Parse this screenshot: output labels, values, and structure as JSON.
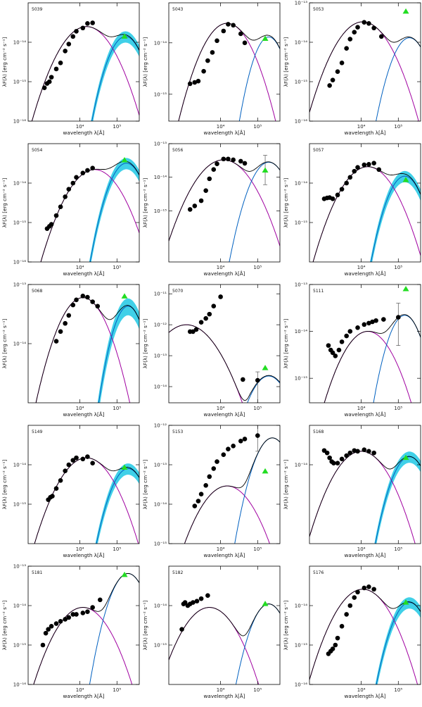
{
  "figure": {
    "x_axis_title": "wavelength λ[Å]",
    "y_axis_title": "λF(λ) [erg cm⁻² s⁻¹]"
  },
  "colors": {
    "observed": "#000000",
    "stellar": "#a000a0",
    "dust": "#0060c0",
    "dust_band": "#00c0e0",
    "total": "#000000",
    "uncertainty": "#a9a9a9",
    "far_ir_point": "#22dd22"
  },
  "chart_data": [
    {
      "id": "5039",
      "type": "line",
      "xscale": "log",
      "yscale": "log",
      "xlim": [
        400,
        400000
      ],
      "ylim": [
        1e-16,
        1e-13
      ],
      "x_ticks": [
        "1000",
        "10⁴",
        "10⁵"
      ],
      "y_ticks": [
        "10⁻¹⁴",
        "10⁻¹⁵",
        "10⁻¹⁶"
      ],
      "photometry": {
        "x": [
          1100,
          1300,
          1500,
          1700,
          2300,
          3000,
          4000,
          5000,
          6500,
          8000,
          12000,
          16000,
          22000
        ],
        "y": [
          7e-16,
          9e-16,
          1e-15,
          1.3e-15,
          2.1e-15,
          3e-15,
          6e-15,
          9e-15,
          1.4e-14,
          1.9e-14,
          2.3e-14,
          3e-14,
          3.1e-14
        ]
      },
      "far_ir_point": {
        "x": 160000,
        "y": 1.4e-14
      },
      "stellar_peak": {
        "x": 15000,
        "y": 2.5e-14
      },
      "dust_peak": {
        "x": 170000,
        "y": 1.4e-14
      },
      "dust_band": true
    },
    {
      "id": "5043",
      "type": "line",
      "xscale": "log",
      "yscale": "log",
      "xlim": [
        400,
        400000
      ],
      "ylim": [
        3e-16,
        6e-14
      ],
      "x_ticks": [
        "1000",
        "10⁴",
        "10⁵"
      ],
      "y_ticks": [
        "10⁻¹⁴",
        "10⁻¹⁵"
      ],
      "photometry": {
        "x": [
          1500,
          2000,
          2500,
          3500,
          4500,
          6000,
          8000,
          12000,
          16000,
          22000,
          35000,
          45000
        ],
        "y": [
          1.6e-15,
          1.7e-15,
          1.8e-15,
          2.8e-15,
          4.5e-15,
          6.5e-15,
          1.1e-14,
          1.7e-14,
          2.3e-14,
          2.2e-14,
          1.5e-14,
          1e-14
        ]
      },
      "far_ir_point": {
        "x": 160000,
        "y": 1.2e-14
      },
      "stellar_peak": {
        "x": 15000,
        "y": 2.4e-14
      },
      "dust_peak": {
        "x": 200000,
        "y": 1.3e-14
      },
      "dust_band": false
    },
    {
      "id": "5053",
      "type": "line",
      "xscale": "log",
      "yscale": "log",
      "xlim": [
        400,
        400000
      ],
      "ylim": [
        1e-16,
        1e-13
      ],
      "x_ticks": [
        "1000",
        "10⁴",
        "10⁵"
      ],
      "y_ticks": [
        "10⁻¹³",
        "10⁻¹⁴",
        "10⁻¹⁵",
        "10⁻¹⁶"
      ],
      "photometry": {
        "x": [
          1400,
          1700,
          2300,
          3000,
          4000,
          5000,
          6500,
          8000,
          12000,
          16000,
          22000,
          35000
        ],
        "y": [
          8e-16,
          1.1e-15,
          1.8e-15,
          3e-15,
          7e-15,
          1.2e-14,
          1.8e-14,
          2.4e-14,
          3.2e-14,
          3e-14,
          2.3e-14,
          1.4e-14
        ]
      },
      "far_ir_point": {
        "x": 160000,
        "y": 6e-14
      },
      "stellar_peak": {
        "x": 11000,
        "y": 3.3e-14
      },
      "dust_peak": {
        "x": 200000,
        "y": 1.3e-14
      },
      "dust_band": false
    },
    {
      "id": "5054",
      "type": "line",
      "xscale": "log",
      "yscale": "log",
      "xlim": [
        400,
        400000
      ],
      "ylim": [
        1e-16,
        1e-13
      ],
      "x_ticks": [
        "1000",
        "10⁴",
        "10⁵"
      ],
      "y_ticks": [
        "10⁻¹⁴",
        "10⁻¹⁵",
        "10⁻¹⁶"
      ],
      "photometry": {
        "x": [
          1300,
          1500,
          1700,
          2300,
          3000,
          4000,
          5000,
          6500,
          8000,
          12000,
          16000,
          22000
        ],
        "y": [
          7e-16,
          8e-16,
          9e-16,
          1.5e-15,
          2.5e-15,
          4.5e-15,
          7e-15,
          1e-14,
          1.4e-14,
          1.8e-14,
          2.1e-14,
          2.4e-14
        ]
      },
      "far_ir_point": {
        "x": 160000,
        "y": 3.8e-14
      },
      "stellar_peak": {
        "x": 25000,
        "y": 2.2e-14
      },
      "dust_peak": {
        "x": 180000,
        "y": 3.2e-14
      },
      "dust_band": true
    },
    {
      "id": "5056",
      "type": "line",
      "xscale": "log",
      "yscale": "log",
      "xlim": [
        400,
        400000
      ],
      "ylim": [
        3e-17,
        1e-13
      ],
      "x_ticks": [
        "1000",
        "10⁴",
        "10⁵"
      ],
      "y_ticks": [
        "10⁻¹³",
        "10⁻¹⁴",
        "10⁻¹⁵"
      ],
      "photometry": {
        "x": [
          1500,
          2000,
          3000,
          4000,
          5000,
          6500,
          8000,
          12000,
          16000,
          22000,
          35000,
          45000
        ],
        "y": [
          1.1e-15,
          1.4e-15,
          2e-15,
          4e-15,
          9e-15,
          1.7e-14,
          2.5e-14,
          3.5e-14,
          3.5e-14,
          3.3e-14,
          3e-14,
          2.6e-14
        ]
      },
      "far_ir_point": {
        "x": 160000,
        "y": 1.6e-14
      },
      "error_bar": {
        "x": 160000,
        "y": 2.5e-14,
        "low": 6e-15,
        "high": 4.5e-14
      },
      "stellar_peak": {
        "x": 12000,
        "y": 3.3e-14
      },
      "dust_peak": {
        "x": 200000,
        "y": 2.8e-14
      },
      "dust_band": false
    },
    {
      "id": "5057",
      "type": "line",
      "xscale": "log",
      "yscale": "log",
      "xlim": [
        400,
        400000
      ],
      "ylim": [
        1e-16,
        1e-13
      ],
      "x_ticks": [
        "1000",
        "10⁴",
        "10⁵"
      ],
      "y_ticks": [
        "10⁻¹⁴",
        "10⁻¹⁵"
      ],
      "photometry": {
        "x": [
          1000,
          1200,
          1400,
          1700,
          2300,
          3000,
          4000,
          5000,
          6500,
          8000,
          12000,
          16000,
          22000,
          30000
        ],
        "y": [
          4e-15,
          4.2e-15,
          4.3e-15,
          4e-15,
          5e-15,
          7e-15,
          1e-14,
          1.4e-14,
          2e-14,
          2.5e-14,
          2.9e-14,
          3e-14,
          3.2e-14,
          2.2e-14
        ]
      },
      "far_ir_point": {
        "x": 160000,
        "y": 1.2e-14
      },
      "stellar_peak": {
        "x": 15000,
        "y": 2.6e-14
      },
      "dust_peak": {
        "x": 150000,
        "y": 1.5e-14
      },
      "dust_band": true
    },
    {
      "id": "5068",
      "type": "line",
      "xscale": "log",
      "yscale": "log",
      "xlim": [
        400,
        400000
      ],
      "ylim": [
        1e-15,
        1e-13
      ],
      "x_ticks": [
        "1000",
        "10⁴",
        "10⁵"
      ],
      "y_ticks": [
        "10⁻¹³",
        "10⁻¹⁴"
      ],
      "photometry": {
        "x": [
          2300,
          3000,
          4000,
          5000,
          6500,
          8000,
          12000,
          16000,
          22000,
          30000
        ],
        "y": [
          1.1e-14,
          1.6e-14,
          2.2e-14,
          3e-14,
          4.5e-14,
          5.5e-14,
          6.4e-14,
          6.1e-14,
          5.1e-14,
          4.3e-14
        ]
      },
      "far_ir_point": {
        "x": 160000,
        "y": 6.3e-14
      },
      "stellar_peak": {
        "x": 12000,
        "y": 6e-14
      },
      "dust_peak": {
        "x": 200000,
        "y": 4.3e-14
      },
      "dust_band": true
    },
    {
      "id": "5070",
      "type": "line",
      "xscale": "log",
      "yscale": "log",
      "xlim": [
        400,
        400000
      ],
      "ylim": [
        3e-15,
        2e-11
      ],
      "x_ticks": [
        "1000",
        "10⁴",
        "10⁵"
      ],
      "y_ticks": [
        "10⁻¹¹",
        "10⁻¹²",
        "10⁻¹³",
        "10⁻¹⁴"
      ],
      "photometry": {
        "x": [
          1500,
          1800,
          2200,
          3000,
          4000,
          5000,
          6500,
          10000,
          40000,
          100000
        ],
        "y": [
          6e-13,
          6e-13,
          7e-13,
          1.2e-12,
          1.6e-12,
          2.2e-12,
          4e-12,
          8e-12,
          1.7e-14,
          1.6e-14
        ]
      },
      "far_ir_point": {
        "x": 160000,
        "y": 4e-14
      },
      "error_bar": {
        "x": 100000,
        "y": 1.6e-14,
        "low": 3e-15,
        "high": 3e-14
      },
      "stellar_peak": {
        "x": 1200,
        "y": 1e-12
      },
      "dust_peak": {
        "x": 200000,
        "y": 2.2e-14
      },
      "dust_band": false
    },
    {
      "id": "5111",
      "type": "line",
      "xscale": "log",
      "yscale": "log",
      "xlim": [
        400,
        400000
      ],
      "ylim": [
        3e-16,
        1e-13
      ],
      "x_ticks": [
        "1000",
        "10⁴",
        "10⁵"
      ],
      "y_ticks": [
        "10⁻¹³",
        "10⁻¹⁴",
        "10⁻¹⁵"
      ],
      "photometry": {
        "x": [
          1300,
          1500,
          1700,
          2000,
          2500,
          3000,
          4000,
          5000,
          8000,
          12000,
          16000,
          20000,
          25000,
          40000,
          100000
        ],
        "y": [
          5e-15,
          4e-15,
          3.5e-15,
          3e-15,
          4e-15,
          6e-15,
          8e-15,
          1e-14,
          1.2e-14,
          1.4e-14,
          1.5e-14,
          1.6e-14,
          1.7e-14,
          1.8e-14,
          2e-14
        ]
      },
      "far_ir_point": {
        "x": 160000,
        "y": 8e-14
      },
      "error_bar": {
        "x": 100000,
        "y": 2e-14,
        "low": 5e-15,
        "high": 4e-14
      },
      "stellar_peak": {
        "x": 15000,
        "y": 1e-14
      },
      "dust_peak": {
        "x": 150000,
        "y": 2.2e-14
      },
      "dust_band": false
    },
    {
      "id": "5149",
      "type": "line",
      "xscale": "log",
      "yscale": "log",
      "xlim": [
        400,
        400000
      ],
      "ylim": [
        1e-16,
        1e-13
      ],
      "x_ticks": [
        "1000",
        "10⁴",
        "10⁵"
      ],
      "y_ticks": [
        "10⁻¹⁴",
        "10⁻¹⁵"
      ],
      "photometry": {
        "x": [
          1400,
          1600,
          1800,
          2300,
          3000,
          4000,
          5000,
          6500,
          8000,
          12000,
          16000,
          22000
        ],
        "y": [
          1.3e-15,
          1.5e-15,
          1.6e-15,
          2.5e-15,
          4e-15,
          7e-15,
          1e-14,
          1.3e-14,
          1.5e-14,
          1.4e-14,
          1.6e-14,
          1.1e-14
        ]
      },
      "far_ir_point": {
        "x": 160000,
        "y": 8.5e-15
      },
      "stellar_peak": {
        "x": 15000,
        "y": 1.5e-14
      },
      "dust_peak": {
        "x": 200000,
        "y": 8e-15
      },
      "dust_band": true
    },
    {
      "id": "5153",
      "type": "line",
      "xscale": "log",
      "yscale": "log",
      "xlim": [
        400,
        400000
      ],
      "ylim": [
        1e-15,
        1e-12
      ],
      "x_ticks": [
        "1000",
        "10⁴",
        "10⁵"
      ],
      "y_ticks": [
        "10⁻¹²",
        "10⁻¹³",
        "10⁻¹⁴",
        "10⁻¹⁵"
      ],
      "photometry": {
        "x": [
          2000,
          2500,
          3000,
          4000,
          5000,
          6500,
          8000,
          12000,
          16000,
          22000,
          35000,
          45000,
          100000
        ],
        "y": [
          9e-15,
          1.2e-14,
          1.8e-14,
          3e-14,
          5e-14,
          8e-14,
          1.2e-13,
          1.8e-13,
          2.5e-13,
          3e-13,
          4e-13,
          4.5e-13,
          5.5e-13
        ]
      },
      "far_ir_point": {
        "x": 160000,
        "y": 6.8e-14
      },
      "error_bar": {
        "x": 100000,
        "y": 5.5e-13,
        "low": 2.2e-13,
        "high": 1e-12
      },
      "stellar_peak": {
        "x": 15000,
        "y": 2.9e-14
      },
      "dust_peak": {
        "x": 250000,
        "y": 4.8e-13
      },
      "dust_band": false
    },
    {
      "id": "5168",
      "type": "line",
      "xscale": "log",
      "yscale": "log",
      "xlim": [
        400,
        400000
      ],
      "ylim": [
        1e-16,
        1e-13
      ],
      "x_ticks": [
        "1000",
        "10⁴",
        "10⁵"
      ],
      "y_ticks": [
        "10⁻¹⁴"
      ],
      "photometry": {
        "x": [
          1000,
          1200,
          1400,
          1600,
          1800,
          2300,
          3000,
          4000,
          5000,
          6500,
          8000,
          12000,
          16000,
          22000
        ],
        "y": [
          2.3e-14,
          2e-14,
          1.5e-14,
          1.2e-14,
          1.1e-14,
          1.1e-14,
          1.4e-14,
          1.7e-14,
          2e-14,
          2.3e-14,
          2.2e-14,
          2.4e-14,
          2.2e-14,
          2e-14
        ]
      },
      "far_ir_point": {
        "x": 160000,
        "y": 1.5e-14
      },
      "stellar_peak": {
        "x": 10000,
        "y": 2.2e-14
      },
      "dust_peak": {
        "x": 200000,
        "y": 1.6e-14
      },
      "dust_band": true
    },
    {
      "id": "5181",
      "type": "line",
      "xscale": "log",
      "yscale": "log",
      "xlim": [
        400,
        400000
      ],
      "ylim": [
        1e-16,
        1e-13
      ],
      "x_ticks": [
        "1000",
        "10⁴",
        "10⁵"
      ],
      "y_ticks": [
        "10⁻¹³",
        "10⁻¹⁴",
        "10⁻¹⁵",
        "10⁻¹⁶"
      ],
      "photometry": {
        "x": [
          1000,
          1200,
          1400,
          1700,
          2300,
          3000,
          4000,
          5000,
          6500,
          8000,
          12000,
          16000,
          22000,
          35000
        ],
        "y": [
          1e-15,
          2e-15,
          2.5e-15,
          3e-15,
          3.5e-15,
          4e-15,
          4.5e-15,
          5e-15,
          6e-15,
          6e-15,
          6.5e-15,
          7e-15,
          9e-15,
          1.4e-14
        ]
      },
      "far_ir_point": {
        "x": 160000,
        "y": 6e-14
      },
      "stellar_peak": {
        "x": 12000,
        "y": 9e-15
      },
      "dust_peak": {
        "x": 200000,
        "y": 6.5e-14
      },
      "dust_band": false
    },
    {
      "id": "5182",
      "type": "line",
      "xscale": "log",
      "yscale": "log",
      "xlim": [
        400,
        400000
      ],
      "ylim": [
        1e-16,
        1e-13
      ],
      "x_ticks": [
        "1000",
        "10⁴",
        "10⁵"
      ],
      "y_ticks": [
        "10⁻¹⁴",
        "10⁻¹⁵"
      ],
      "photometry": {
        "x": [
          900,
          1000,
          1100,
          1300,
          1500,
          1800,
          2300,
          3000,
          4500
        ],
        "y": [
          2.5e-15,
          1.1e-14,
          1.2e-14,
          1e-14,
          1.1e-14,
          1.2e-14,
          1.3e-14,
          1.5e-14,
          1.8e-14
        ]
      },
      "far_ir_point": {
        "x": 160000,
        "y": 1.1e-14
      },
      "stellar_peak": {
        "x": 5000,
        "y": 9e-15
      },
      "dust_peak": {
        "x": 200000,
        "y": 1.1e-14
      },
      "dust_band": false
    },
    {
      "id": "5176",
      "type": "line",
      "xscale": "log",
      "yscale": "log",
      "xlim": [
        400,
        400000
      ],
      "ylim": [
        1e-16,
        1e-13
      ],
      "x_ticks": [
        "1000",
        "10⁴",
        "10⁵"
      ],
      "y_ticks": [
        "10⁻¹⁴",
        "10⁻¹⁵",
        "10⁻¹⁶"
      ],
      "photometry": {
        "x": [
          1300,
          1500,
          1700,
          2000,
          2300,
          3000,
          4000,
          5000,
          6500,
          8000,
          12000,
          16000,
          22000
        ],
        "y": [
          6e-16,
          7e-16,
          8e-16,
          1e-15,
          1.5e-15,
          3e-15,
          6e-15,
          1e-14,
          1.6e-14,
          2.2e-14,
          2.8e-14,
          3e-14,
          2.6e-14
        ]
      },
      "far_ir_point": {
        "x": 160000,
        "y": 1.2e-14
      },
      "stellar_peak": {
        "x": 11000,
        "y": 2.6e-14
      },
      "dust_peak": {
        "x": 200000,
        "y": 1.2e-14
      },
      "dust_band": true
    }
  ]
}
